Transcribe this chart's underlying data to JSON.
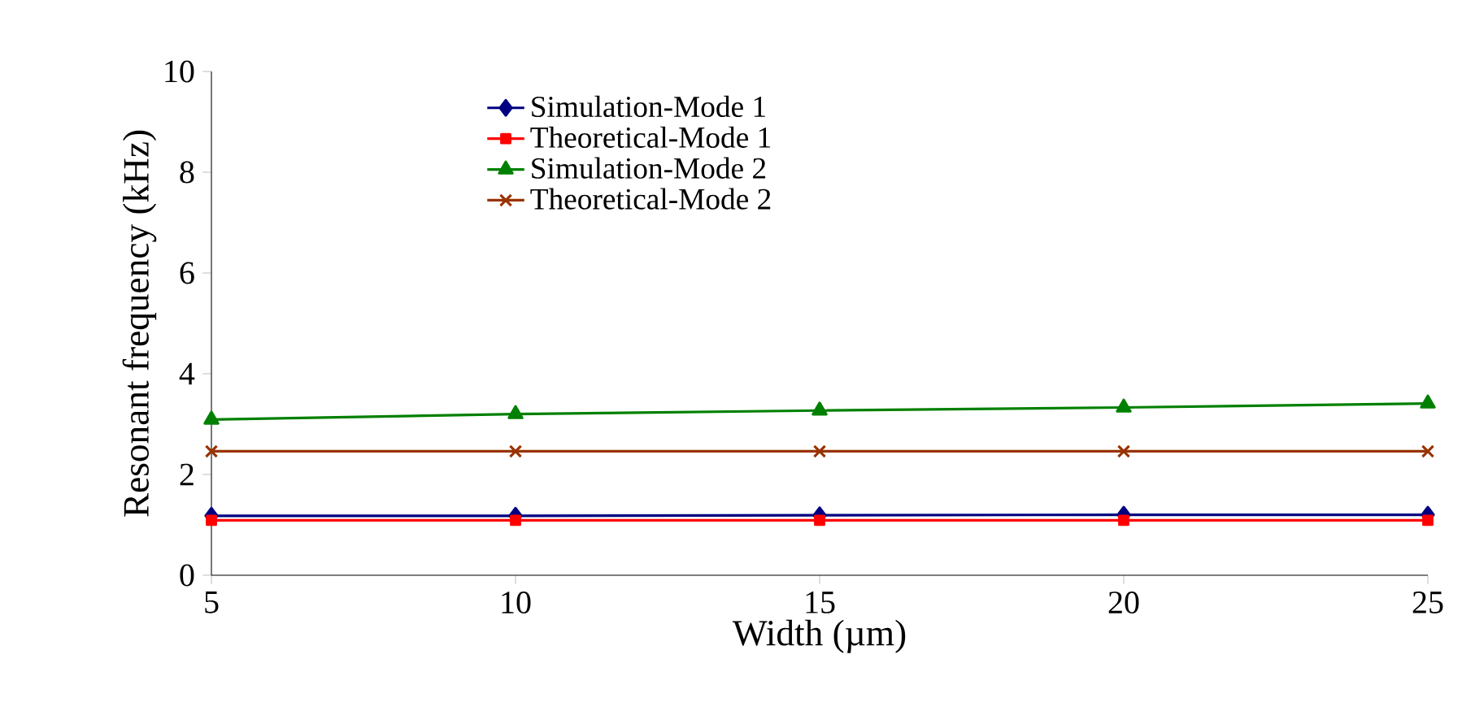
{
  "chart_data": {
    "type": "line",
    "xlabel": "Width (µm)",
    "ylabel": "Resonant frequency (kHz)",
    "x": [
      5,
      10,
      15,
      20,
      25
    ],
    "xlim": [
      5,
      25
    ],
    "xticks": [
      5,
      10,
      15,
      20,
      25
    ],
    "ylim": [
      0,
      10
    ],
    "yticks": [
      0,
      2,
      4,
      6,
      8,
      10
    ],
    "legend": "top",
    "line_style": "solid",
    "series": [
      {
        "name": "Simulation-Mode 1",
        "color": "#000080",
        "marker": "diamond",
        "values": [
          1.18,
          1.18,
          1.19,
          1.2,
          1.2
        ]
      },
      {
        "name": "Theoretical-Mode 1",
        "color": "#ff0000",
        "marker": "square",
        "values": [
          1.09,
          1.09,
          1.09,
          1.09,
          1.09
        ]
      },
      {
        "name": "Simulation-Mode 2",
        "color": "#008000",
        "marker": "triangle",
        "values": [
          3.09,
          3.2,
          3.27,
          3.33,
          3.41
        ]
      },
      {
        "name": "Theoretical-Mode 2",
        "color": "#993300",
        "marker": "cross",
        "values": [
          2.46,
          2.46,
          2.46,
          2.46,
          2.46
        ]
      }
    ]
  }
}
